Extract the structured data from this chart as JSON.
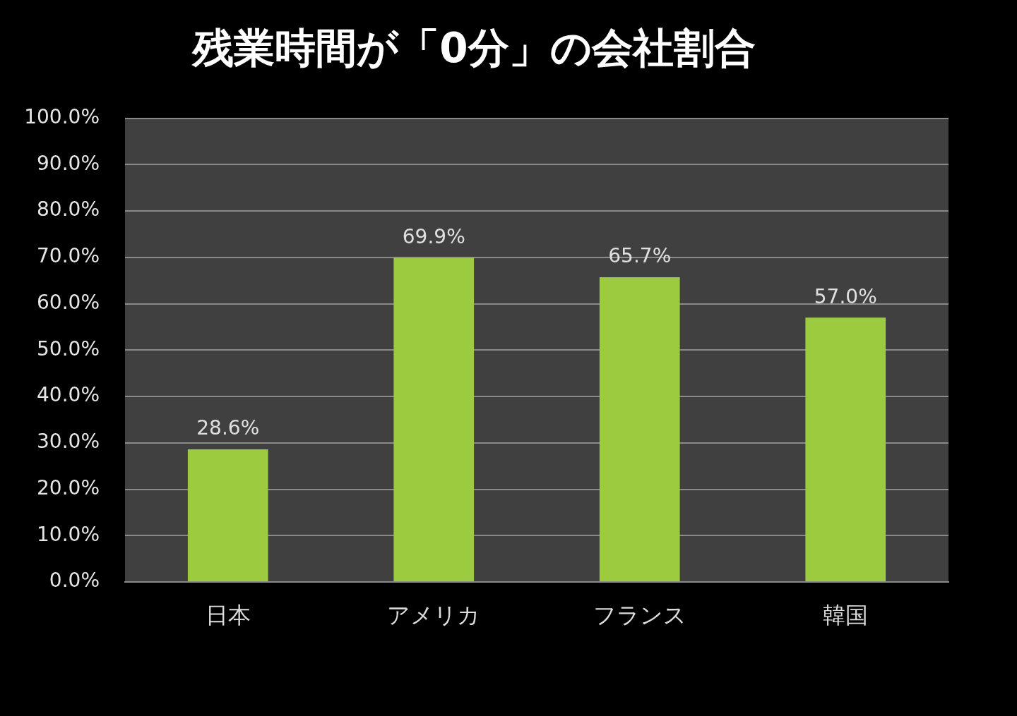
{
  "chart_data": {
    "type": "bar",
    "title": "残業時間が「0分」の会社割合",
    "categories": [
      "日本",
      "アメリカ",
      "フランス",
      "韓国"
    ],
    "values": [
      28.6,
      69.9,
      65.7,
      57.0
    ],
    "value_labels": [
      "28.6%",
      "69.9%",
      "65.7%",
      "57.0%"
    ],
    "color": "#9ccb3f",
    "ylim": [
      0,
      100
    ],
    "yticks": [
      {
        "value": 0,
        "label": "0.0%"
      },
      {
        "value": 10,
        "label": "10.0%"
      },
      {
        "value": 20,
        "label": "20.0%"
      },
      {
        "value": 30,
        "label": "30.0%"
      },
      {
        "value": 40,
        "label": "40.0%"
      },
      {
        "value": 50,
        "label": "50.0%"
      },
      {
        "value": 60,
        "label": "60.0%"
      },
      {
        "value": 70,
        "label": "70.0%"
      },
      {
        "value": 80,
        "label": "80.0%"
      },
      {
        "value": 90,
        "label": "90.0%"
      },
      {
        "value": 100,
        "label": "100.0%"
      }
    ],
    "grid": "y"
  }
}
